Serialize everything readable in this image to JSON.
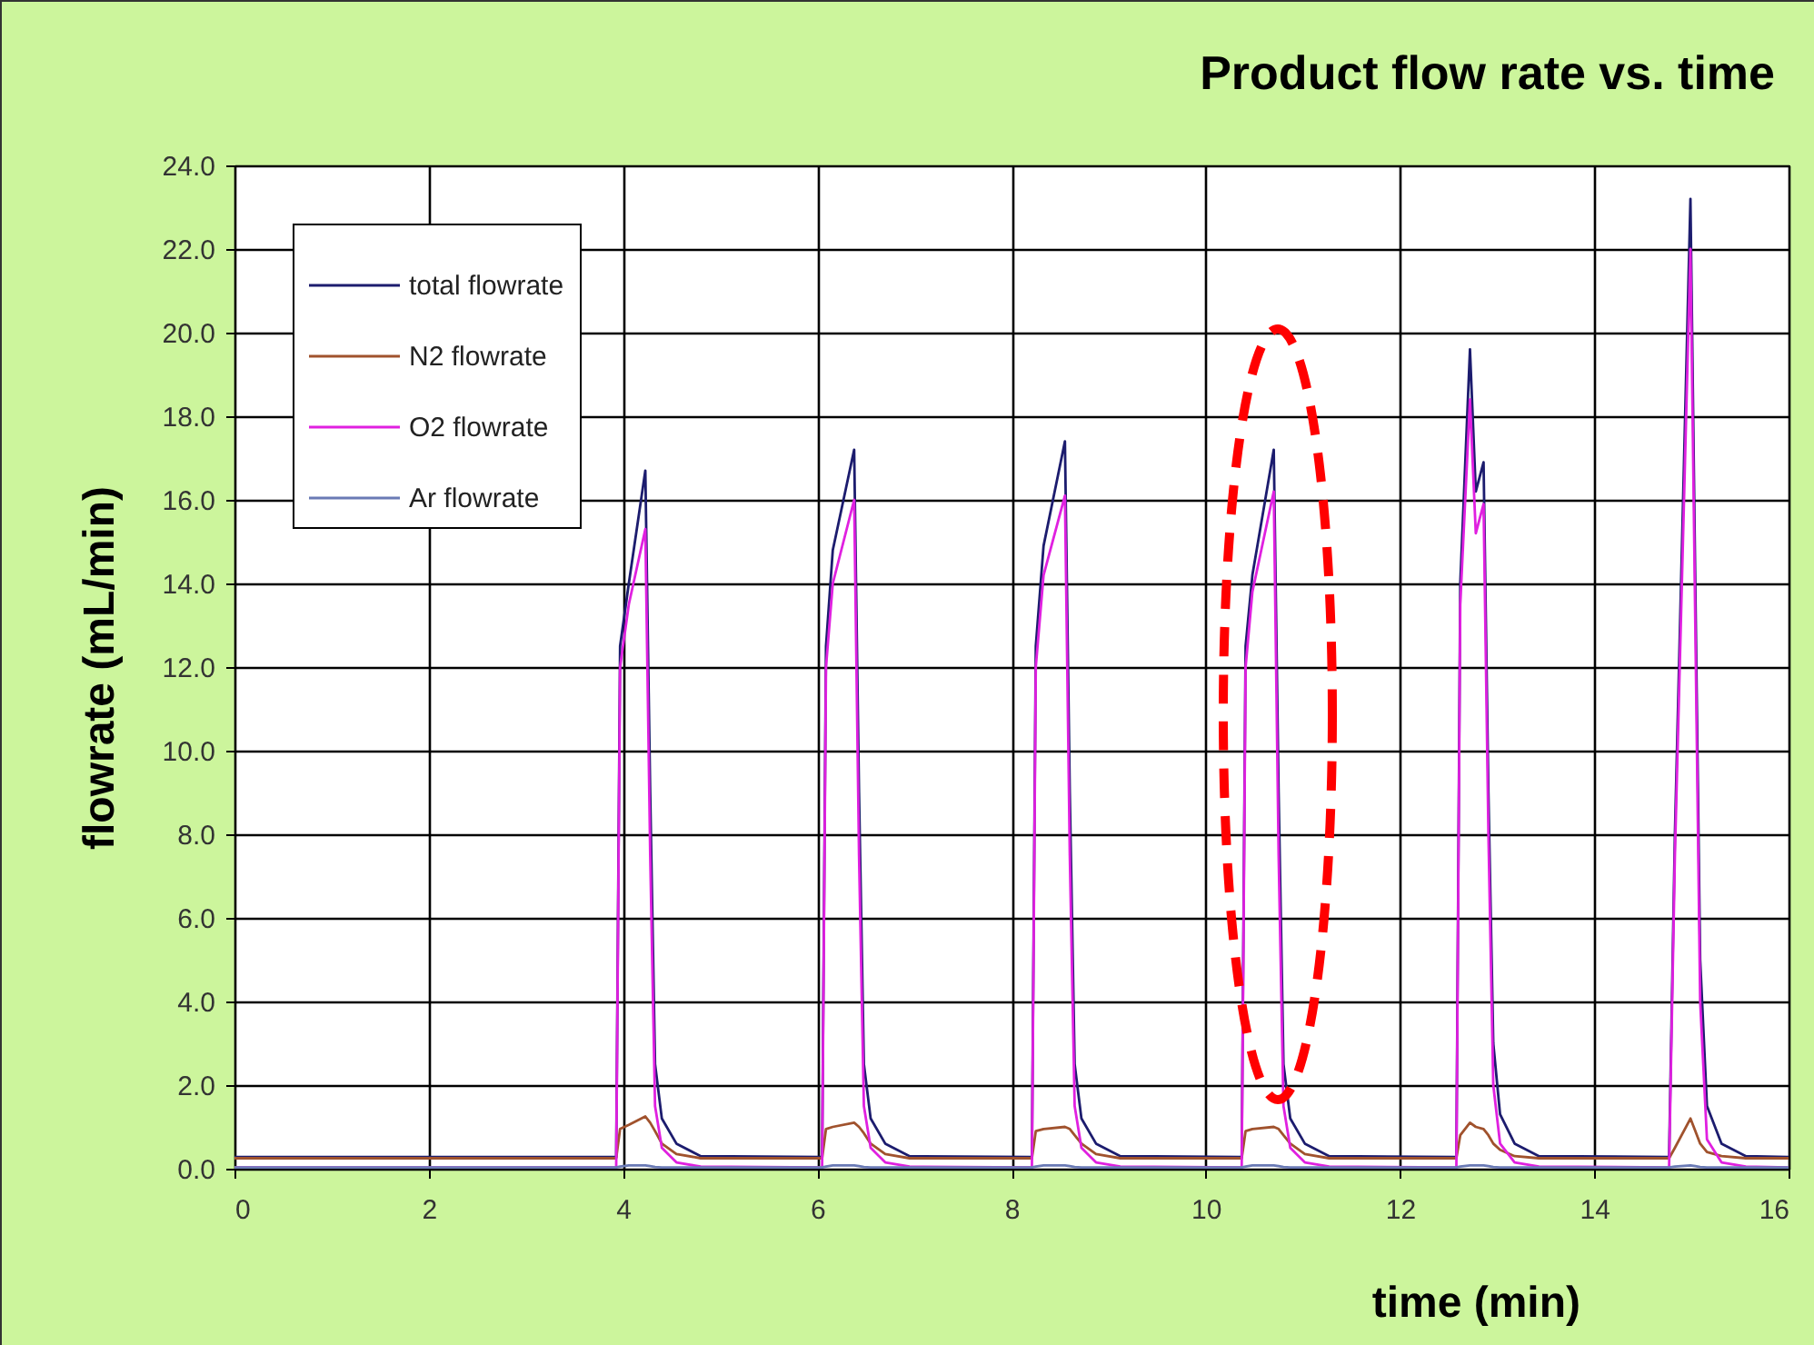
{
  "chart_data": {
    "type": "line",
    "title": "Product flow rate vs. time",
    "xlabel": "time (min)",
    "ylabel": "flowrate (mL/min)",
    "x": [
      0,
      3.93,
      3.97,
      4.06,
      4.23,
      4.28,
      4.33,
      4.4,
      4.55,
      4.8,
      6.05,
      6.09,
      6.16,
      6.38,
      6.43,
      6.48,
      6.55,
      6.7,
      6.95,
      8.21,
      8.25,
      8.33,
      8.55,
      8.6,
      8.65,
      8.72,
      8.87,
      9.12,
      10.37,
      10.41,
      10.48,
      10.7,
      10.75,
      10.8,
      10.87,
      11.02,
      11.27,
      12.58,
      12.62,
      12.72,
      12.78,
      12.86,
      12.91,
      12.96,
      13.03,
      13.18,
      13.43,
      14.77,
      14.83,
      14.99,
      15.04,
      15.09,
      15.16,
      15.31,
      15.56,
      16
    ],
    "series": [
      {
        "name": "total flowrate",
        "color": "#1c1c6e",
        "values": [
          0.28,
          0.28,
          12.5,
          14.0,
          16.7,
          9.0,
          2.5,
          1.2,
          0.6,
          0.3,
          0.28,
          12.5,
          14.8,
          17.2,
          9.0,
          2.5,
          1.2,
          0.6,
          0.3,
          0.28,
          12.5,
          14.9,
          17.4,
          9.0,
          2.5,
          1.2,
          0.6,
          0.3,
          0.28,
          12.5,
          14.2,
          17.2,
          9.0,
          2.5,
          1.2,
          0.6,
          0.3,
          0.28,
          14.0,
          19.6,
          16.2,
          16.9,
          9.0,
          3.0,
          1.3,
          0.6,
          0.3,
          0.28,
          8.0,
          23.2,
          14.0,
          5.0,
          1.5,
          0.6,
          0.3,
          0.28
        ]
      },
      {
        "name": "N2 flowrate",
        "color": "#a0522d",
        "values": [
          0.25,
          0.25,
          0.95,
          1.05,
          1.25,
          1.1,
          0.9,
          0.6,
          0.35,
          0.25,
          0.25,
          0.95,
          1.0,
          1.1,
          1.0,
          0.85,
          0.6,
          0.35,
          0.25,
          0.25,
          0.9,
          0.95,
          1.0,
          0.95,
          0.8,
          0.6,
          0.35,
          0.25,
          0.25,
          0.9,
          0.95,
          1.0,
          0.95,
          0.8,
          0.6,
          0.35,
          0.25,
          0.25,
          0.8,
          1.1,
          1.0,
          0.95,
          0.8,
          0.6,
          0.45,
          0.3,
          0.25,
          0.25,
          0.5,
          1.2,
          0.9,
          0.6,
          0.4,
          0.3,
          0.25,
          0.25
        ]
      },
      {
        "name": "O2 flowrate",
        "color": "#e020e0",
        "values": [
          0.03,
          0.03,
          12.0,
          13.5,
          15.3,
          7.5,
          1.5,
          0.5,
          0.15,
          0.05,
          0.03,
          12.0,
          14.0,
          16.0,
          7.5,
          1.5,
          0.5,
          0.15,
          0.05,
          0.03,
          12.0,
          14.2,
          16.1,
          7.5,
          1.5,
          0.5,
          0.15,
          0.05,
          0.03,
          12.0,
          13.8,
          16.2,
          7.5,
          1.5,
          0.5,
          0.15,
          0.05,
          0.03,
          13.5,
          18.4,
          15.2,
          15.9,
          8.0,
          2.0,
          0.6,
          0.15,
          0.05,
          0.03,
          7.5,
          22.0,
          13.0,
          4.0,
          0.7,
          0.15,
          0.05,
          0.03
        ]
      },
      {
        "name": "Ar flowrate",
        "color": "#6a7ab5",
        "values": [
          0.03,
          0.03,
          0.05,
          0.08,
          0.08,
          0.06,
          0.04,
          0.03,
          0.03,
          0.03,
          0.03,
          0.05,
          0.08,
          0.08,
          0.06,
          0.04,
          0.03,
          0.03,
          0.03,
          0.03,
          0.05,
          0.08,
          0.08,
          0.06,
          0.04,
          0.03,
          0.03,
          0.03,
          0.03,
          0.05,
          0.08,
          0.08,
          0.06,
          0.04,
          0.03,
          0.03,
          0.03,
          0.03,
          0.05,
          0.08,
          0.08,
          0.08,
          0.06,
          0.04,
          0.03,
          0.03,
          0.03,
          0.03,
          0.05,
          0.08,
          0.06,
          0.04,
          0.03,
          0.03,
          0.03,
          0.03
        ]
      }
    ],
    "xlim": [
      0,
      16
    ],
    "xticks": [
      0,
      2,
      4,
      6,
      8,
      10,
      12,
      14,
      16
    ],
    "ylim": [
      0,
      24
    ],
    "yticks": [
      {
        "value": 0,
        "label": "0.0"
      },
      {
        "value": 2,
        "label": "2.0"
      },
      {
        "value": 4,
        "label": "4.0"
      },
      {
        "value": 6,
        "label": "6.0"
      },
      {
        "value": 8,
        "label": "8.0"
      },
      {
        "value": 10,
        "label": "10.0"
      },
      {
        "value": 12,
        "label": "12.0"
      },
      {
        "value": 14,
        "label": "14.0"
      },
      {
        "value": 16,
        "label": "16.0"
      },
      {
        "value": 18,
        "label": "18.0"
      },
      {
        "value": 20,
        "label": "20.0"
      },
      {
        "value": 22,
        "label": "22.0"
      },
      {
        "value": 24,
        "label": "24.0"
      }
    ],
    "grid": true,
    "legend": "top left",
    "marker": "none",
    "line_style": "solid"
  }
}
